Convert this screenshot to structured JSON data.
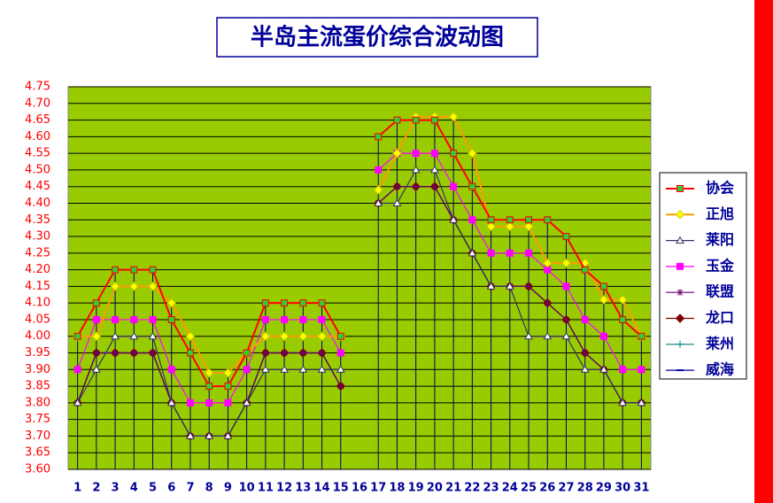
{
  "chart_data": {
    "type": "line",
    "title": "半岛主流蛋价综合波动图",
    "categories": [
      "1",
      "2",
      "3",
      "4",
      "5",
      "6",
      "7",
      "8",
      "9",
      "10",
      "11",
      "12",
      "13",
      "14",
      "15",
      "16",
      "17",
      "18",
      "19",
      "20",
      "21",
      "22",
      "23",
      "24",
      "25",
      "26",
      "27",
      "28",
      "29",
      "30",
      "31"
    ],
    "ylim": [
      3.6,
      4.75
    ],
    "yticks": [
      {
        "value": 3.6,
        "label": "3.60"
      },
      3.65,
      {
        "value": 3.7,
        "label": "3.70"
      },
      3.75,
      {
        "value": 3.8,
        "label": "3.80"
      },
      3.85,
      {
        "value": 3.9,
        "label": "3.90"
      },
      3.95,
      {
        "value": 4,
        "label": "4.00"
      },
      4.05,
      {
        "value": 4.1,
        "label": "4.10"
      },
      4.15,
      {
        "value": 4.2,
        "label": "4.20"
      },
      4.25,
      {
        "value": 4.3,
        "label": "4.30"
      },
      4.35,
      {
        "value": 4.4,
        "label": "4.40"
      },
      4.45,
      {
        "value": 4.5,
        "label": "4.50"
      },
      4.55,
      {
        "value": 4.6,
        "label": "4.60"
      },
      4.65,
      {
        "value": 4.7,
        "label": "4.70"
      },
      4.75
    ],
    "grid": true,
    "legend": "right",
    "background": "#99cc00",
    "series": [
      {
        "name": "协会",
        "color": "#ff0000",
        "marker": "square",
        "marker_color": "#33cc33",
        "values": [
          4.0,
          4.1,
          4.2,
          4.2,
          4.2,
          4.05,
          3.95,
          3.85,
          3.85,
          3.95,
          4.1,
          4.1,
          4.1,
          4.1,
          4.0,
          null,
          4.6,
          4.65,
          4.65,
          4.65,
          4.55,
          4.45,
          4.35,
          4.35,
          4.35,
          4.35,
          4.3,
          4.2,
          4.15,
          4.05,
          4.0
        ]
      },
      {
        "name": "正旭",
        "color": "#ff9900",
        "marker": "diamond",
        "marker_color": "#ffff00",
        "values": [
          4.0,
          4.0,
          4.15,
          4.15,
          4.15,
          4.1,
          4.0,
          3.89,
          3.89,
          3.95,
          4.0,
          4.0,
          4.0,
          4.0,
          4.0,
          null,
          4.44,
          4.55,
          4.66,
          4.66,
          4.66,
          4.55,
          4.33,
          4.33,
          4.33,
          4.22,
          4.22,
          4.22,
          4.11,
          4.11,
          4.0
        ]
      },
      {
        "name": "莱阳",
        "color": "#333366",
        "marker": "triangle",
        "marker_color": "#ffffff",
        "values": [
          3.8,
          3.9,
          4.0,
          4.0,
          4.0,
          3.8,
          3.7,
          3.7,
          3.7,
          3.8,
          3.9,
          3.9,
          3.9,
          3.9,
          3.9,
          null,
          4.4,
          4.4,
          4.5,
          4.5,
          4.35,
          4.25,
          4.15,
          4.15,
          4.0,
          4.0,
          4.0,
          3.9,
          3.9,
          3.8,
          3.8
        ]
      },
      {
        "name": "玉金",
        "color": "#ff00ff",
        "marker": "square",
        "marker_color": "#ff00ff",
        "values": [
          3.9,
          4.05,
          4.05,
          4.05,
          4.05,
          3.9,
          3.8,
          3.8,
          3.8,
          3.9,
          4.05,
          4.05,
          4.05,
          4.05,
          3.95,
          null,
          4.5,
          4.55,
          4.55,
          4.55,
          4.45,
          4.35,
          4.25,
          4.25,
          4.25,
          4.2,
          4.15,
          4.05,
          4.0,
          3.9,
          3.9
        ]
      },
      {
        "name": "联盟",
        "color": "#660066",
        "marker": "star",
        "marker_color": "#660066",
        "values": [
          3.8,
          3.95,
          3.95,
          3.95,
          3.95,
          3.8,
          3.7,
          3.7,
          3.7,
          3.8,
          3.95,
          3.95,
          3.95,
          3.95,
          3.85,
          null,
          4.4,
          4.45,
          4.45,
          4.45,
          4.35,
          4.25,
          4.15,
          4.15,
          4.15,
          4.1,
          4.05,
          3.95,
          3.9,
          3.8,
          3.8
        ]
      },
      {
        "name": "龙口",
        "color": "#800000",
        "marker": "diamond",
        "marker_color": "#800000",
        "values": [
          3.8,
          3.95,
          3.95,
          3.95,
          3.95,
          3.8,
          3.7,
          3.7,
          3.7,
          3.8,
          3.95,
          3.95,
          3.95,
          3.95,
          3.85,
          null,
          4.4,
          4.45,
          4.45,
          4.45,
          4.35,
          4.25,
          4.15,
          4.15,
          4.15,
          4.1,
          4.05,
          3.95,
          3.9,
          3.8,
          3.8
        ]
      },
      {
        "name": "莱州",
        "color": "#008080",
        "marker": "plus",
        "marker_color": "#008080",
        "values": [
          3.8,
          3.95,
          3.95,
          3.95,
          3.95,
          3.8,
          3.7,
          3.7,
          3.7,
          3.8,
          3.95,
          3.95,
          3.95,
          3.95,
          3.85,
          null,
          4.4,
          4.45,
          4.45,
          4.45,
          4.35,
          4.25,
          4.15,
          4.15,
          4.15,
          4.1,
          4.05,
          3.95,
          3.9,
          3.8,
          3.8
        ]
      },
      {
        "name": "威海",
        "color": "#000099",
        "marker": "dash",
        "marker_color": "#000099",
        "values": [
          3.8,
          3.95,
          3.95,
          3.95,
          3.95,
          3.8,
          3.7,
          3.7,
          3.7,
          3.8,
          3.95,
          3.95,
          3.95,
          3.95,
          3.85,
          null,
          4.4,
          4.45,
          4.45,
          4.45,
          4.35,
          4.25,
          4.15,
          4.15,
          4.15,
          4.1,
          4.05,
          3.95,
          3.9,
          3.8,
          3.8
        ]
      }
    ]
  }
}
